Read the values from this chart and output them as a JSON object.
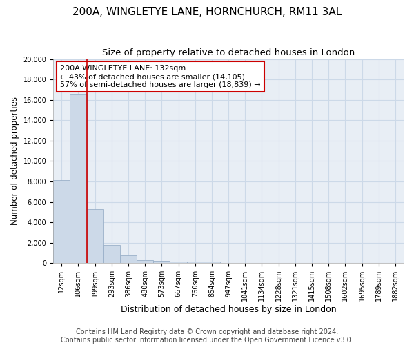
{
  "title": "200A, WINGLETYE LANE, HORNCHURCH, RM11 3AL",
  "subtitle": "Size of property relative to detached houses in London",
  "xlabel": "Distribution of detached houses by size in London",
  "ylabel": "Number of detached properties",
  "categories": [
    "12sqm",
    "106sqm",
    "199sqm",
    "293sqm",
    "386sqm",
    "480sqm",
    "573sqm",
    "667sqm",
    "760sqm",
    "854sqm",
    "947sqm",
    "1041sqm",
    "1134sqm",
    "1228sqm",
    "1321sqm",
    "1415sqm",
    "1508sqm",
    "1602sqm",
    "1695sqm",
    "1789sqm",
    "1882sqm"
  ],
  "values": [
    8100,
    16600,
    5300,
    1800,
    750,
    300,
    220,
    175,
    155,
    130,
    0,
    0,
    0,
    0,
    0,
    0,
    0,
    0,
    0,
    0,
    0
  ],
  "bar_color": "#ccd9e8",
  "bar_edge_color": "#9ab0c8",
  "vline_color": "#cc0000",
  "annotation_text": "200A WINGLETYE LANE: 132sqm\n← 43% of detached houses are smaller (14,105)\n57% of semi-detached houses are larger (18,839) →",
  "annotation_box_color": "#ffffff",
  "annotation_box_edge": "#cc0000",
  "ylim": [
    0,
    20000
  ],
  "yticks": [
    0,
    2000,
    4000,
    6000,
    8000,
    10000,
    12000,
    14000,
    16000,
    18000,
    20000
  ],
  "grid_color": "#ccd9e8",
  "bg_color": "#e8eef5",
  "footer": "Contains HM Land Registry data © Crown copyright and database right 2024.\nContains public sector information licensed under the Open Government Licence v3.0.",
  "title_fontsize": 11,
  "subtitle_fontsize": 9.5,
  "xlabel_fontsize": 9,
  "ylabel_fontsize": 8.5,
  "tick_fontsize": 7,
  "annotation_fontsize": 8,
  "footer_fontsize": 7
}
